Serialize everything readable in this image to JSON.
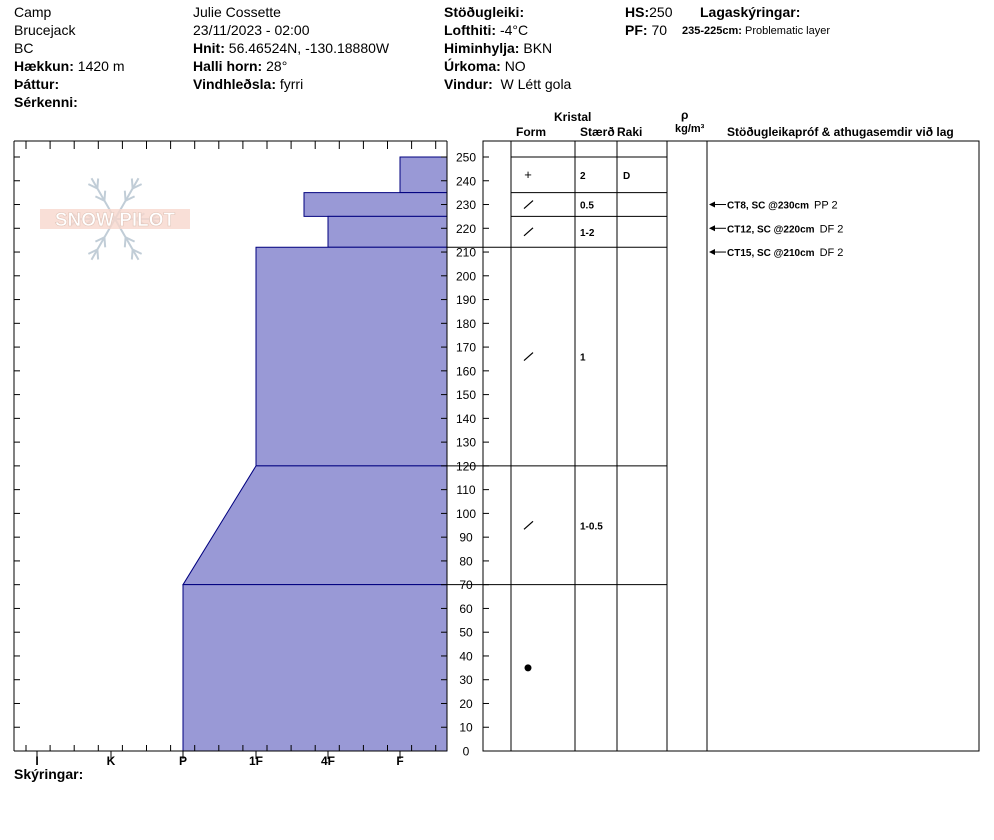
{
  "header": {
    "location": "Camp",
    "region1": "Brucejack",
    "region2": "BC",
    "elevation_label": "Hækkun:",
    "elevation_value": "1420 m",
    "aspect_label": "Þáttur:",
    "aspect_value": "",
    "features_label": "Sérkenni:",
    "features_value": "",
    "observer": "Julie Cossette",
    "datetime": "23/11/2023 - 02:00",
    "coords_label": "Hnit:",
    "coords_value": "56.46524N, -130.18880W",
    "slope_label": "Halli horn:",
    "slope_value": "28°",
    "wind_loading_label": "Vindhleðsla:",
    "wind_loading_value": "fyrri",
    "stability_label": "Stöðugleiki:",
    "stability_value": "",
    "air_temp_label": "Lofthiti:",
    "air_temp_value": "-4°C",
    "sky_label": "Himinhylja:",
    "sky_value": "BKN",
    "precip_label": "Úrkoma:",
    "precip_value": "NO",
    "wind_label": "Vindur:",
    "wind_value": "W Létt gola",
    "hs_label": "HS:",
    "hs_value": "250",
    "pf_label": "PF:",
    "pf_value": "70",
    "layer_notes_label": "Lagaskýringar:",
    "layer_note_range": "235-225cm:",
    "layer_note_text": "Problematic layer"
  },
  "columns": {
    "crystal": "Kristal",
    "form": "Form",
    "size": "Stærð",
    "moisture": "Raki",
    "density_symbol": "ρ",
    "density_unit": "kg/m³",
    "stability_tests": "Stöðugleikapróf & athugasemdir við lag"
  },
  "legend_label": "Skýringar:",
  "watermark": "SNOW PILOT",
  "colors": {
    "hardness_fill": "#9999d6",
    "hardness_line": "#00007f"
  },
  "chart_data": {
    "type": "bar",
    "orientation": "horizontal-step-profile",
    "y_axis": {
      "min": 0,
      "max": 250,
      "tick_step": 10,
      "unit": "cm"
    },
    "x_axis": {
      "categories": [
        "I",
        "K",
        "P",
        "1F",
        "4F",
        "F"
      ]
    },
    "hardness_profile": [
      {
        "top": 250,
        "bottom": 235,
        "hardness": "F"
      },
      {
        "top": 235,
        "bottom": 225,
        "hardness": "4F-"
      },
      {
        "top": 225,
        "bottom": 212,
        "hardness": "4F"
      },
      {
        "top": 212,
        "bottom": 120,
        "hardness": "1F"
      },
      {
        "top": 120,
        "bottom": 70,
        "hardness_top": "1F",
        "hardness_bottom": "P"
      },
      {
        "top": 70,
        "bottom": 0,
        "hardness": "P"
      }
    ],
    "layer_boundaries": [
      250,
      235,
      225,
      212,
      120,
      70
    ],
    "layers": [
      {
        "top": 250,
        "bottom": 235,
        "form_symbol": "+",
        "size": "2",
        "moisture": "D"
      },
      {
        "top": 235,
        "bottom": 225,
        "form_symbol": "/",
        "size": "0.5",
        "moisture": ""
      },
      {
        "top": 225,
        "bottom": 212,
        "form_symbol": "/",
        "size": "1-2",
        "moisture": ""
      },
      {
        "top": 212,
        "bottom": 120,
        "form_symbol": "/",
        "size": "1",
        "moisture": ""
      },
      {
        "top": 120,
        "bottom": 70,
        "form_symbol": "/",
        "size": "1-0.5",
        "moisture": ""
      },
      {
        "top": 70,
        "bottom": 0,
        "form_symbol": "●",
        "size": "",
        "moisture": ""
      }
    ],
    "stability_tests": [
      {
        "depth": 230,
        "test": "CT8, SC @230cm",
        "comment": "PP 2"
      },
      {
        "depth": 220,
        "test": "CT12, SC @220cm",
        "comment": "DF 2"
      },
      {
        "depth": 210,
        "test": "CT15, SC @210cm",
        "comment": "DF 2"
      }
    ]
  }
}
